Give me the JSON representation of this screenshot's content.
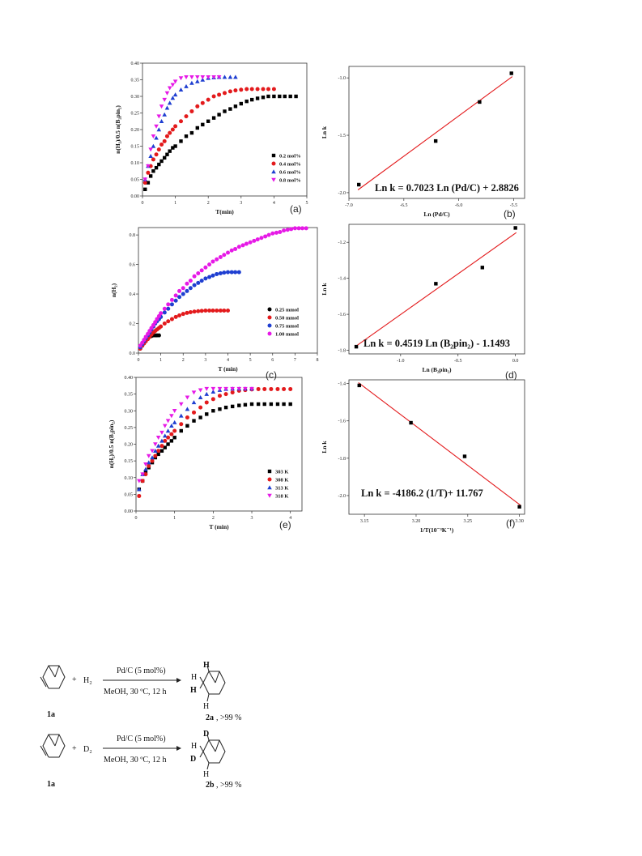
{
  "chart_data": [
    {
      "id": "a",
      "type": "scatter",
      "panel_label": "(a)",
      "xlabel": "T(min)",
      "ylabel": "n(H₂)/0.5 n(B₂pin₂)",
      "xlim": [
        0,
        5
      ],
      "ylim": [
        0,
        0.4
      ],
      "xticks": [
        "0",
        "1",
        "2",
        "3",
        "4",
        "5"
      ],
      "yticks": [
        "0.00",
        "0.05",
        "0.10",
        "0.15",
        "0.20",
        "0.25",
        "0.30",
        "0.35",
        "0.40"
      ],
      "legend_position": "bottom-right",
      "series": [
        {
          "name": "0.2 mol%",
          "marker": "square",
          "color": "#000000",
          "x": [
            0.08,
            0.17,
            0.25,
            0.33,
            0.42,
            0.5,
            0.58,
            0.67,
            0.75,
            0.83,
            0.92,
            1.0,
            1.17,
            1.33,
            1.5,
            1.67,
            1.83,
            2.0,
            2.17,
            2.33,
            2.5,
            2.67,
            2.83,
            3.0,
            3.17,
            3.33,
            3.5,
            3.67,
            3.83,
            4.0,
            4.17,
            4.33,
            4.5,
            4.67
          ],
          "y": [
            0.02,
            0.04,
            0.06,
            0.075,
            0.085,
            0.095,
            0.105,
            0.115,
            0.125,
            0.135,
            0.145,
            0.15,
            0.165,
            0.18,
            0.19,
            0.205,
            0.215,
            0.225,
            0.235,
            0.245,
            0.255,
            0.262,
            0.27,
            0.278,
            0.285,
            0.29,
            0.294,
            0.297,
            0.3,
            0.3,
            0.3,
            0.3,
            0.3,
            0.3
          ]
        },
        {
          "name": "0.4 mol%",
          "marker": "circle",
          "color": "#e31a1c",
          "x": [
            0.08,
            0.17,
            0.25,
            0.33,
            0.42,
            0.5,
            0.58,
            0.67,
            0.75,
            0.83,
            0.92,
            1.0,
            1.17,
            1.33,
            1.5,
            1.67,
            1.83,
            2.0,
            2.17,
            2.33,
            2.5,
            2.67,
            2.83,
            3.0,
            3.17,
            3.33,
            3.5,
            3.67,
            3.83,
            4.0
          ],
          "y": [
            0.04,
            0.07,
            0.09,
            0.11,
            0.125,
            0.14,
            0.155,
            0.165,
            0.18,
            0.19,
            0.2,
            0.21,
            0.225,
            0.24,
            0.255,
            0.27,
            0.28,
            0.29,
            0.3,
            0.305,
            0.31,
            0.315,
            0.318,
            0.32,
            0.322,
            0.322,
            0.322,
            0.322,
            0.322,
            0.322
          ]
        },
        {
          "name": "0.6 mol%",
          "marker": "triangle-up",
          "color": "#1f3fd1",
          "x": [
            0.08,
            0.17,
            0.25,
            0.33,
            0.42,
            0.5,
            0.58,
            0.67,
            0.75,
            0.83,
            0.92,
            1.0,
            1.17,
            1.33,
            1.5,
            1.67,
            1.83,
            2.0,
            2.17,
            2.33,
            2.5,
            2.67,
            2.83
          ],
          "y": [
            0.05,
            0.09,
            0.12,
            0.15,
            0.175,
            0.2,
            0.225,
            0.245,
            0.265,
            0.28,
            0.295,
            0.305,
            0.32,
            0.33,
            0.34,
            0.345,
            0.35,
            0.355,
            0.357,
            0.358,
            0.358,
            0.358,
            0.358
          ]
        },
        {
          "name": "0.8 mol%",
          "marker": "triangle-down",
          "color": "#e619e6",
          "x": [
            0.08,
            0.17,
            0.25,
            0.33,
            0.42,
            0.5,
            0.58,
            0.67,
            0.75,
            0.83,
            0.92,
            1.0,
            1.17,
            1.33,
            1.5,
            1.67,
            1.83,
            2.0,
            2.17,
            2.33
          ],
          "y": [
            0.05,
            0.09,
            0.14,
            0.18,
            0.21,
            0.24,
            0.27,
            0.29,
            0.31,
            0.325,
            0.335,
            0.345,
            0.355,
            0.358,
            0.358,
            0.358,
            0.358,
            0.358,
            0.358,
            0.358
          ]
        }
      ]
    },
    {
      "id": "b",
      "type": "scatter",
      "panel_label": "(b)",
      "xlabel": "Ln (Pd/C)",
      "ylabel": "Ln k",
      "xlim": [
        -7.0,
        -5.4
      ],
      "ylim": [
        -2.05,
        -0.9
      ],
      "xticks": [
        "-7.0",
        "-6.5",
        "-6.0",
        "-5.5"
      ],
      "yticks": [
        "-2.0",
        "-1.5",
        "-1.0"
      ],
      "annotation": "Ln k = 0.7023 Ln (Pd/C) + 2.8826",
      "fit": {
        "slope": 0.7023,
        "intercept": 2.8826,
        "color": "#e31a1c"
      },
      "series": [
        {
          "name": "",
          "marker": "square",
          "color": "#000000",
          "x": [
            -6.91,
            -6.21,
            -5.81,
            -5.52
          ],
          "y": [
            -1.93,
            -1.55,
            -1.21,
            -0.96
          ]
        }
      ]
    },
    {
      "id": "c",
      "type": "scatter",
      "panel_label": "(c)",
      "xlabel": "T (min)",
      "ylabel": "n(H₂)",
      "xlim": [
        0,
        8
      ],
      "ylim": [
        0,
        0.85
      ],
      "xticks": [
        "0",
        "1",
        "2",
        "3",
        "4",
        "5",
        "6",
        "7",
        "8"
      ],
      "yticks": [
        "0.0",
        "0.2",
        "0.4",
        "0.6",
        "0.8"
      ],
      "legend_position": "bottom-right",
      "series": [
        {
          "name": "0.25 mmol",
          "marker": "circle",
          "color": "#000000",
          "x": [
            0.08,
            0.17,
            0.25,
            0.33,
            0.42,
            0.5,
            0.58,
            0.67,
            0.75,
            0.83,
            0.92
          ],
          "y": [
            0.03,
            0.05,
            0.07,
            0.085,
            0.1,
            0.11,
            0.115,
            0.12,
            0.12,
            0.12,
            0.12
          ]
        },
        {
          "name": "0.50 mmol",
          "marker": "circle",
          "color": "#e31a1c",
          "x": [
            0.08,
            0.17,
            0.25,
            0.33,
            0.42,
            0.5,
            0.58,
            0.67,
            0.75,
            0.83,
            0.92,
            1.0,
            1.17,
            1.33,
            1.5,
            1.67,
            1.83,
            2.0,
            2.17,
            2.33,
            2.5,
            2.67,
            2.83,
            3.0,
            3.17,
            3.33,
            3.5,
            3.67,
            3.83,
            4.0
          ],
          "y": [
            0.03,
            0.05,
            0.065,
            0.08,
            0.095,
            0.11,
            0.125,
            0.14,
            0.15,
            0.16,
            0.17,
            0.18,
            0.2,
            0.215,
            0.23,
            0.245,
            0.255,
            0.265,
            0.272,
            0.277,
            0.281,
            0.284,
            0.286,
            0.288,
            0.288,
            0.288,
            0.288,
            0.288,
            0.288,
            0.288
          ]
        },
        {
          "name": "0.75 mmol",
          "marker": "circle",
          "color": "#1f3fd1",
          "x": [
            0.08,
            0.17,
            0.25,
            0.33,
            0.42,
            0.5,
            0.58,
            0.67,
            0.75,
            0.83,
            0.92,
            1.0,
            1.17,
            1.33,
            1.5,
            1.67,
            1.83,
            2.0,
            2.17,
            2.33,
            2.5,
            2.67,
            2.83,
            3.0,
            3.17,
            3.33,
            3.5,
            3.67,
            3.83,
            4.0,
            4.17,
            4.33,
            4.5
          ],
          "y": [
            0.04,
            0.06,
            0.08,
            0.1,
            0.12,
            0.14,
            0.16,
            0.18,
            0.2,
            0.215,
            0.23,
            0.245,
            0.275,
            0.3,
            0.33,
            0.355,
            0.38,
            0.4,
            0.42,
            0.44,
            0.46,
            0.475,
            0.49,
            0.505,
            0.515,
            0.525,
            0.535,
            0.54,
            0.545,
            0.548,
            0.548,
            0.548,
            0.548
          ]
        },
        {
          "name": "1.00 mmol",
          "marker": "circle",
          "color": "#e619e6",
          "x": [
            0.08,
            0.17,
            0.25,
            0.33,
            0.42,
            0.5,
            0.58,
            0.67,
            0.75,
            0.83,
            0.92,
            1.0,
            1.17,
            1.33,
            1.5,
            1.67,
            1.83,
            2.0,
            2.17,
            2.33,
            2.5,
            2.67,
            2.83,
            3.0,
            3.17,
            3.33,
            3.5,
            3.67,
            3.83,
            4.0,
            4.17,
            4.33,
            4.5,
            4.67,
            4.83,
            5.0,
            5.17,
            5.33,
            5.5,
            5.67,
            5.83,
            6.0,
            6.17,
            6.33,
            6.5,
            6.67,
            6.83,
            7.0,
            7.17,
            7.33,
            7.5
          ],
          "y": [
            0.05,
            0.07,
            0.09,
            0.11,
            0.13,
            0.15,
            0.17,
            0.19,
            0.21,
            0.23,
            0.25,
            0.27,
            0.3,
            0.33,
            0.36,
            0.39,
            0.42,
            0.44,
            0.47,
            0.49,
            0.52,
            0.54,
            0.56,
            0.58,
            0.6,
            0.62,
            0.635,
            0.65,
            0.665,
            0.68,
            0.695,
            0.705,
            0.72,
            0.73,
            0.74,
            0.75,
            0.76,
            0.77,
            0.78,
            0.79,
            0.8,
            0.81,
            0.815,
            0.82,
            0.83,
            0.835,
            0.84,
            0.845,
            0.845,
            0.845,
            0.845
          ]
        }
      ]
    },
    {
      "id": "d",
      "type": "scatter",
      "panel_label": "(d)",
      "xlabel": "Ln (B₂pin₂)",
      "ylabel": "Ln k",
      "xlim": [
        -1.45,
        0.08
      ],
      "ylim": [
        -1.82,
        -1.1
      ],
      "xticks": [
        "-1.0",
        "-0.5",
        "0.0"
      ],
      "yticks": [
        "-1.8",
        "-1.6",
        "-1.4",
        "-1.2"
      ],
      "annotation": "Ln k = 0.4519 Ln (B₂pin₂) - 1.1493",
      "fit": {
        "slope": 0.4519,
        "intercept": -1.1493,
        "color": "#e31a1c"
      },
      "series": [
        {
          "name": "",
          "marker": "square",
          "color": "#000000",
          "x": [
            -1.386,
            -0.693,
            -0.288,
            0.0
          ],
          "y": [
            -1.78,
            -1.43,
            -1.34,
            -1.12
          ]
        }
      ]
    },
    {
      "id": "e",
      "type": "scatter",
      "panel_label": "(e)",
      "xlabel": "T (min)",
      "ylabel": "n(H₂)/0.5 n(B₂pin₂)",
      "xlim": [
        0,
        4.3
      ],
      "ylim": [
        0,
        0.4
      ],
      "xticks": [
        "0",
        "1",
        "2",
        "3",
        "4"
      ],
      "yticks": [
        "0.00",
        "0.05",
        "0.10",
        "0.15",
        "0.20",
        "0.25",
        "0.30",
        "0.35",
        "0.40"
      ],
      "legend_position": "bottom-right",
      "series": [
        {
          "name": "303 K",
          "marker": "square",
          "color": "#000000",
          "x": [
            0.08,
            0.17,
            0.25,
            0.33,
            0.42,
            0.5,
            0.58,
            0.67,
            0.75,
            0.83,
            0.92,
            1.0,
            1.17,
            1.33,
            1.5,
            1.67,
            1.83,
            2.0,
            2.17,
            2.33,
            2.5,
            2.67,
            2.83,
            3.0,
            3.17,
            3.33,
            3.5,
            3.67,
            3.83,
            4.0
          ],
          "y": [
            0.065,
            0.09,
            0.115,
            0.13,
            0.145,
            0.16,
            0.17,
            0.18,
            0.19,
            0.2,
            0.21,
            0.22,
            0.24,
            0.255,
            0.27,
            0.28,
            0.29,
            0.3,
            0.305,
            0.31,
            0.313,
            0.316,
            0.318,
            0.32,
            0.32,
            0.32,
            0.32,
            0.32,
            0.32,
            0.32
          ]
        },
        {
          "name": "308 K",
          "marker": "circle",
          "color": "#e31a1c",
          "x": [
            0.08,
            0.17,
            0.25,
            0.33,
            0.42,
            0.5,
            0.58,
            0.67,
            0.75,
            0.83,
            0.92,
            1.0,
            1.17,
            1.33,
            1.5,
            1.67,
            1.83,
            2.0,
            2.17,
            2.33,
            2.5,
            2.67,
            2.83,
            3.0,
            3.17,
            3.33,
            3.5,
            3.67,
            3.83,
            4.0
          ],
          "y": [
            0.045,
            0.09,
            0.11,
            0.135,
            0.15,
            0.165,
            0.18,
            0.195,
            0.21,
            0.22,
            0.23,
            0.24,
            0.26,
            0.28,
            0.295,
            0.31,
            0.325,
            0.335,
            0.345,
            0.35,
            0.355,
            0.36,
            0.362,
            0.364,
            0.365,
            0.365,
            0.365,
            0.365,
            0.365,
            0.365
          ]
        },
        {
          "name": "313 K",
          "marker": "triangle-up",
          "color": "#1f3fd1",
          "x": [
            0.08,
            0.17,
            0.25,
            0.33,
            0.42,
            0.5,
            0.58,
            0.67,
            0.75,
            0.83,
            0.92,
            1.0,
            1.17,
            1.33,
            1.5,
            1.67,
            1.83,
            2.0,
            2.17,
            2.33,
            2.5,
            2.67,
            2.83,
            3.0
          ],
          "y": [
            0.065,
            0.11,
            0.125,
            0.145,
            0.16,
            0.18,
            0.195,
            0.21,
            0.225,
            0.24,
            0.255,
            0.265,
            0.285,
            0.305,
            0.325,
            0.34,
            0.35,
            0.357,
            0.362,
            0.365,
            0.366,
            0.366,
            0.366,
            0.366
          ]
        },
        {
          "name": "318 K",
          "marker": "triangle-down",
          "color": "#e619e6",
          "x": [
            0.08,
            0.17,
            0.25,
            0.33,
            0.42,
            0.5,
            0.58,
            0.67,
            0.75,
            0.83,
            0.92,
            1.0,
            1.17,
            1.33,
            1.5,
            1.67,
            1.83,
            2.0,
            2.17,
            2.33,
            2.5,
            2.67,
            2.83,
            3.0
          ],
          "y": [
            0.09,
            0.11,
            0.14,
            0.165,
            0.18,
            0.2,
            0.22,
            0.235,
            0.255,
            0.27,
            0.285,
            0.3,
            0.32,
            0.34,
            0.355,
            0.362,
            0.366,
            0.366,
            0.366,
            0.366,
            0.366,
            0.366,
            0.366,
            0.366
          ]
        }
      ]
    },
    {
      "id": "f",
      "type": "scatter",
      "panel_label": "(f)",
      "xlabel": "1/T(10⁻³K⁻¹)",
      "ylabel": "Ln k",
      "xlim": [
        3.135,
        3.305
      ],
      "ylim": [
        -2.1,
        -1.38
      ],
      "xticks": [
        "3.15",
        "3.20",
        "3.25",
        "3.30"
      ],
      "yticks": [
        "-2.0",
        "-1.8",
        "-1.6",
        "-1.4"
      ],
      "annotation": "Ln k = -4186.2 (1/T)+ 11.767",
      "fit": {
        "slope": -4.1862,
        "intercept": 11.767,
        "color": "#e31a1c"
      },
      "series": [
        {
          "name": "",
          "marker": "square",
          "color": "#000000",
          "x": [
            3.145,
            3.195,
            3.247,
            3.3
          ],
          "y": [
            -1.41,
            -1.61,
            -1.79,
            -2.06
          ]
        }
      ]
    }
  ],
  "scheme": {
    "reactions": [
      {
        "plus": "+",
        "reagent": "H₂",
        "reagent_color": "#1f3fd1",
        "label_color": "#1f3fd1",
        "conditions_top": "Pd/C (5 mol%)",
        "conditions_bottom": "MeOH, 30 ºC, 12 h",
        "reactant_label": "1a",
        "product_label": "2a",
        "product_yield": ", >99 %",
        "isotope": "H",
        "stereo_h": "H"
      },
      {
        "plus": "+",
        "reagent": "D₂",
        "reagent_color": "#e31a1c",
        "label_color": "#e31a1c",
        "conditions_top": "Pd/C (5 mol%)",
        "conditions_bottom": "MeOH, 30 ºC, 12 h",
        "reactant_label": "1a",
        "product_label": "2b",
        "product_yield": ", >99 %",
        "isotope": "D",
        "stereo_h": "H"
      }
    ]
  }
}
